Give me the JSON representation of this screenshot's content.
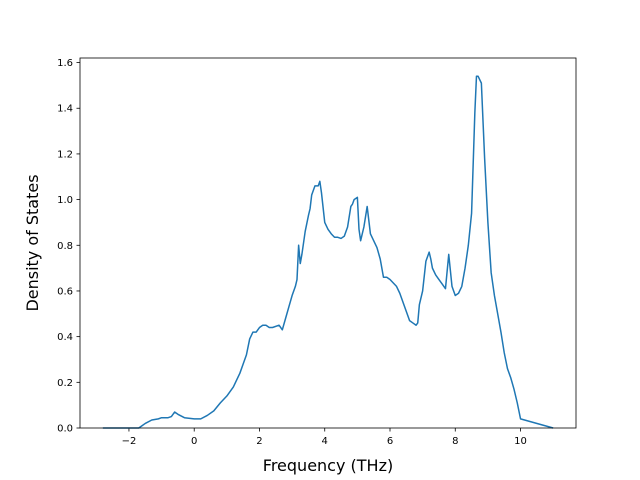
{
  "chart_data": {
    "type": "line",
    "title": "",
    "xlabel": "Frequency (THz)",
    "ylabel": "Density of States",
    "xlim": [
      -3.5,
      11.7
    ],
    "ylim": [
      0.0,
      1.62
    ],
    "xticks": [
      -2,
      0,
      2,
      4,
      6,
      8,
      10
    ],
    "xtick_labels": [
      "−2",
      "0",
      "2",
      "4",
      "6",
      "8",
      "10"
    ],
    "yticks": [
      0.0,
      0.2,
      0.4,
      0.6,
      0.8,
      1.0,
      1.2,
      1.4,
      1.6
    ],
    "ytick_labels": [
      "0.0",
      "0.2",
      "0.4",
      "0.6",
      "0.8",
      "1.0",
      "1.2",
      "1.4",
      "1.6"
    ],
    "grid": false,
    "legend": "none",
    "series": [
      {
        "color": "#1f77b4",
        "x": [
          -2.8,
          -1.7,
          -1.6,
          -1.5,
          -1.3,
          -1.1,
          -1.0,
          -0.8,
          -0.7,
          -0.6,
          -0.5,
          -0.3,
          0.0,
          0.2,
          0.4,
          0.6,
          0.8,
          1.0,
          1.2,
          1.4,
          1.5,
          1.6,
          1.7,
          1.8,
          1.9,
          2.0,
          2.1,
          2.2,
          2.3,
          2.4,
          2.6,
          2.7,
          2.8,
          2.9,
          3.0,
          3.1,
          3.15,
          3.2,
          3.25,
          3.3,
          3.4,
          3.5,
          3.55,
          3.6,
          3.7,
          3.8,
          3.85,
          3.9,
          4.0,
          4.1,
          4.2,
          4.3,
          4.4,
          4.5,
          4.6,
          4.7,
          4.8,
          4.85,
          4.9,
          5.0,
          5.05,
          5.1,
          5.2,
          5.3,
          5.4,
          5.5,
          5.6,
          5.7,
          5.8,
          5.9,
          6.0,
          6.2,
          6.3,
          6.4,
          6.5,
          6.6,
          6.7,
          6.8,
          6.85,
          6.9,
          7.0,
          7.1,
          7.2,
          7.25,
          7.3,
          7.4,
          7.5,
          7.6,
          7.7,
          7.8,
          7.9,
          8.0,
          8.1,
          8.2,
          8.3,
          8.4,
          8.5,
          8.6,
          8.65,
          8.7,
          8.8,
          8.9,
          9.0,
          9.1,
          9.2,
          9.3,
          9.4,
          9.5,
          9.6,
          9.7,
          9.8,
          9.9,
          10.0,
          11.0
        ],
        "y": [
          0.0,
          0.0,
          0.01,
          0.02,
          0.035,
          0.04,
          0.045,
          0.045,
          0.05,
          0.07,
          0.06,
          0.045,
          0.04,
          0.04,
          0.055,
          0.075,
          0.11,
          0.14,
          0.18,
          0.24,
          0.28,
          0.32,
          0.39,
          0.42,
          0.42,
          0.44,
          0.45,
          0.45,
          0.44,
          0.44,
          0.45,
          0.43,
          0.48,
          0.53,
          0.58,
          0.62,
          0.65,
          0.8,
          0.72,
          0.76,
          0.86,
          0.93,
          0.96,
          1.02,
          1.06,
          1.06,
          1.08,
          1.03,
          0.9,
          0.87,
          0.85,
          0.835,
          0.835,
          0.83,
          0.84,
          0.88,
          0.97,
          0.98,
          1.0,
          1.01,
          0.87,
          0.82,
          0.88,
          0.97,
          0.85,
          0.82,
          0.79,
          0.74,
          0.66,
          0.66,
          0.65,
          0.62,
          0.59,
          0.55,
          0.51,
          0.47,
          0.46,
          0.45,
          0.46,
          0.54,
          0.6,
          0.73,
          0.77,
          0.74,
          0.7,
          0.67,
          0.65,
          0.63,
          0.61,
          0.76,
          0.62,
          0.58,
          0.59,
          0.62,
          0.7,
          0.8,
          0.94,
          1.38,
          1.54,
          1.54,
          1.51,
          1.18,
          0.9,
          0.68,
          0.58,
          0.5,
          0.42,
          0.33,
          0.26,
          0.22,
          0.17,
          0.11,
          0.04,
          0.0
        ]
      }
    ]
  }
}
